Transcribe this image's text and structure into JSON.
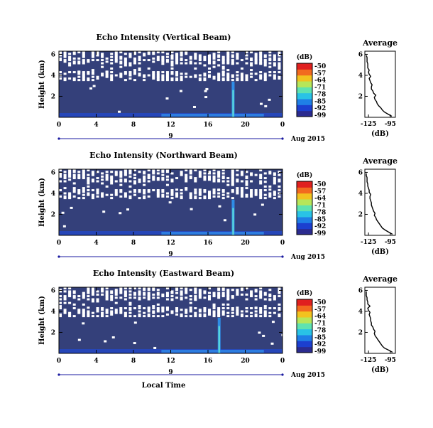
{
  "chart_data": [
    {
      "type": "heatmap",
      "title": "Echo Intensity (Vertical Beam)",
      "ylabel": "Height (km)",
      "x_ticks": [
        "0",
        "4",
        "8",
        "12",
        "16",
        "20",
        "0"
      ],
      "y_ticks": [
        "6",
        "4",
        "2"
      ],
      "date_day": "9",
      "date_label": "Aug 2015",
      "colorbar": {
        "unit": "(dB)",
        "ticks": [
          "-50",
          "-57",
          "-64",
          "-71",
          "-78",
          "-85",
          "-92",
          "-99"
        ],
        "colors": [
          "#2b2b8f",
          "#1c3fcf",
          "#1f7fe6",
          "#29c3e6",
          "#5fe3b0",
          "#b7e65a",
          "#f2c21f",
          "#f26a1f",
          "#e0201f"
        ]
      },
      "background_color": "#34407a",
      "plume_hour": 18.7,
      "profile": {
        "title": "Average",
        "xlabel": "(dB)",
        "x_ticks": [
          "-125",
          "-95"
        ],
        "y_ticks": [
          "6",
          "4",
          "2"
        ],
        "xlim": [
          -130,
          -88
        ],
        "ylim": [
          0,
          6
        ],
        "heights": [
          0.1,
          0.3,
          0.5,
          0.7,
          0.9,
          1.1,
          1.3,
          1.5,
          1.7,
          1.9,
          2.1,
          2.3,
          2.5,
          2.7,
          2.9,
          3.1,
          3.3,
          3.5,
          3.7,
          3.9,
          4.1,
          4.3,
          4.5,
          4.7,
          4.9,
          5.1,
          5.3,
          5.5,
          5.7,
          5.9
        ],
        "values": [
          -93,
          -98,
          -103,
          -106,
          -108,
          -111,
          -113,
          -114,
          -116,
          -117,
          -115,
          -118,
          -119,
          -121,
          -121,
          -120,
          -122,
          -123,
          -124,
          -122,
          -124,
          -125,
          -124,
          -126,
          -126,
          -126,
          -127,
          -127,
          -127,
          -128
        ]
      }
    },
    {
      "type": "heatmap",
      "title": "Echo Intensity (Northward Beam)",
      "ylabel": "Height (km)",
      "x_ticks": [
        "0",
        "4",
        "8",
        "12",
        "16",
        "20",
        "0"
      ],
      "y_ticks": [
        "6",
        "4",
        "2"
      ],
      "date_day": "9",
      "date_label": "Aug 2015",
      "colorbar": {
        "unit": "(dB)",
        "ticks": [
          "-50",
          "-57",
          "-64",
          "-71",
          "-78",
          "-85",
          "-92",
          "-99"
        ],
        "colors": [
          "#2b2b8f",
          "#1c3fcf",
          "#1f7fe6",
          "#29c3e6",
          "#5fe3b0",
          "#b7e65a",
          "#f2c21f",
          "#f26a1f",
          "#e0201f"
        ]
      },
      "background_color": "#34407a",
      "plume_hour": 18.7,
      "profile": {
        "title": "Average",
        "xlabel": "(dB)",
        "x_ticks": [
          "-125",
          "-95"
        ],
        "y_ticks": [
          "6",
          "4",
          "2"
        ],
        "xlim": [
          -130,
          -88
        ],
        "ylim": [
          0,
          6
        ],
        "heights": [
          0.1,
          0.3,
          0.5,
          0.7,
          0.9,
          1.1,
          1.3,
          1.5,
          1.7,
          1.9,
          2.1,
          2.3,
          2.5,
          2.7,
          2.9,
          3.1,
          3.3,
          3.5,
          3.7,
          3.9,
          4.1,
          4.3,
          4.5,
          4.7,
          4.9,
          5.1,
          5.3,
          5.5,
          5.7,
          5.9
        ],
        "values": [
          -92,
          -97,
          -102,
          -106,
          -108,
          -110,
          -112,
          -114,
          -115,
          -117,
          -116,
          -118,
          -119,
          -120,
          -121,
          -121,
          -122,
          -123,
          -123,
          -122,
          -124,
          -124,
          -125,
          -126,
          -126,
          -127,
          -127,
          -127,
          -128,
          -128
        ]
      }
    },
    {
      "type": "heatmap",
      "title": "Echo Intensity (Eastward Beam)",
      "ylabel": "Height (km)",
      "x_ticks": [
        "0",
        "4",
        "8",
        "12",
        "16",
        "20",
        "0"
      ],
      "y_ticks": [
        "6",
        "4",
        "2"
      ],
      "date_day": "9",
      "date_label": "Aug 2015",
      "xlabel": "Local Time",
      "colorbar": {
        "unit": "(dB)",
        "ticks": [
          "-50",
          "-57",
          "-64",
          "-71",
          "-78",
          "-85",
          "-92",
          "-99"
        ],
        "colors": [
          "#2b2b8f",
          "#1c3fcf",
          "#1f7fe6",
          "#29c3e6",
          "#5fe3b0",
          "#b7e65a",
          "#f2c21f",
          "#f26a1f",
          "#e0201f"
        ]
      },
      "background_color": "#34407a",
      "plume_hour": 17.2,
      "profile": {
        "title": "Average",
        "xlabel": "(dB)",
        "x_ticks": [
          "-125",
          "-95"
        ],
        "y_ticks": [
          "6",
          "4",
          "2"
        ],
        "xlim": [
          -130,
          -88
        ],
        "ylim": [
          0,
          6
        ],
        "heights": [
          0.1,
          0.3,
          0.5,
          0.7,
          0.9,
          1.1,
          1.3,
          1.5,
          1.7,
          1.9,
          2.1,
          2.3,
          2.5,
          2.7,
          2.9,
          3.1,
          3.3,
          3.5,
          3.7,
          3.9,
          4.1,
          4.3,
          4.5,
          4.7,
          4.9,
          5.1,
          5.3,
          5.5,
          5.7,
          5.9
        ],
        "values": [
          -92,
          -97,
          -103,
          -106,
          -108,
          -110,
          -112,
          -114,
          -116,
          -117,
          -116,
          -118,
          -119,
          -121,
          -121,
          -122,
          -122,
          -123,
          -124,
          -123,
          -125,
          -126,
          -123,
          -126,
          -126,
          -127,
          -127,
          -128,
          -128,
          -128
        ]
      }
    }
  ]
}
